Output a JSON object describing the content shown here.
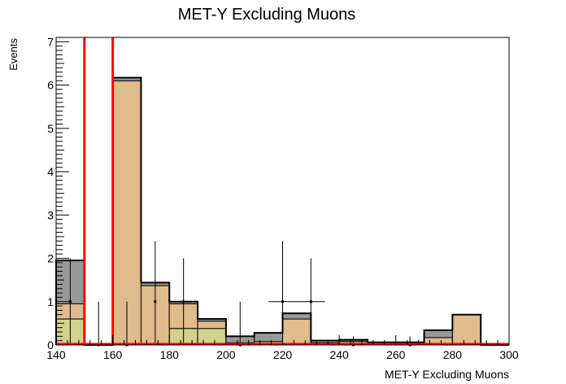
{
  "chart_data": {
    "type": "bar",
    "title": "MET-Y Excluding Muons",
    "xlabel": "MET-Y Excluding Muons",
    "ylabel": "Events",
    "xlim": [
      140,
      300
    ],
    "ylim": [
      0,
      7.1
    ],
    "x_ticks": [
      140,
      160,
      180,
      200,
      220,
      240,
      260,
      280,
      300
    ],
    "y_ticks": [
      0,
      1,
      2,
      3,
      4,
      5,
      6,
      7
    ],
    "grid": false,
    "bin_edges": [
      140,
      150,
      160,
      170,
      180,
      190,
      200,
      210,
      220,
      230,
      240,
      250,
      260,
      270,
      280,
      290,
      300
    ],
    "series": [
      {
        "color": "#d2d28c",
        "values": [
          0.6,
          0.0,
          0.0,
          0.0,
          0.38,
          0.38,
          0.0,
          0.0,
          0.0,
          0.0,
          0.0,
          0.0,
          0.0,
          0.0,
          0.0,
          0.0
        ]
      },
      {
        "color": "#e0bb8c",
        "values": [
          0.35,
          0.0,
          6.1,
          1.37,
          0.57,
          0.17,
          0.05,
          0.08,
          0.6,
          0.05,
          0.08,
          0.03,
          0.03,
          0.17,
          0.7,
          0.0
        ]
      },
      {
        "color": "#999999",
        "values": [
          1.0,
          0.0,
          0.07,
          0.07,
          0.05,
          0.05,
          0.15,
          0.2,
          0.13,
          0.05,
          0.04,
          0.03,
          0.03,
          0.17,
          0.0,
          0.0
        ]
      }
    ],
    "data_points": [
      {
        "x": 145,
        "y": 1,
        "err": 1,
        "xerr": 0
      },
      {
        "x": 155,
        "y": 0,
        "err": 1,
        "xerr": 0
      },
      {
        "x": 165,
        "y": 0,
        "err": 1,
        "xerr": 0
      },
      {
        "x": 175,
        "y": 1,
        "err": 1.4,
        "xerr": 0
      },
      {
        "x": 185,
        "y": 1,
        "err": 1,
        "xerr": 0
      },
      {
        "x": 205,
        "y": 0,
        "err": 1,
        "xerr": 0
      },
      {
        "x": 220,
        "y": 1,
        "err": 1.4,
        "xerr": 5
      },
      {
        "x": 230,
        "y": 1,
        "err": 1,
        "xerr": 5
      },
      {
        "x": 245,
        "y": 0,
        "err": 0.2,
        "xerr": 0
      },
      {
        "x": 265,
        "y": 0,
        "err": 0.2,
        "xerr": 0
      }
    ],
    "highlight_edges": [
      150,
      160
    ],
    "highlight_color": "#ff0000"
  }
}
